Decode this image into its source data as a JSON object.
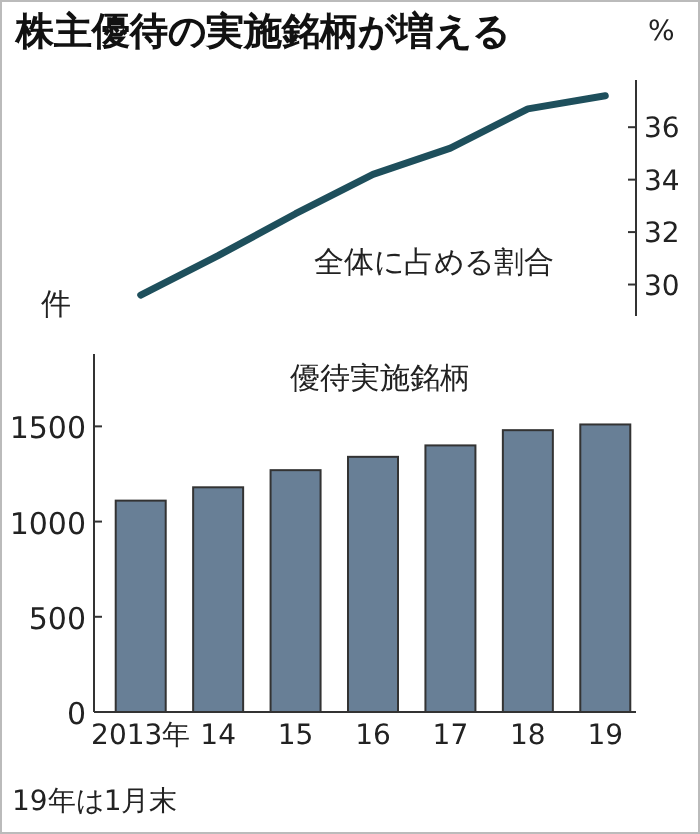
{
  "chart_data": [
    {
      "type": "line",
      "title": "株主優待の実施銘柄が増える",
      "ylabel": "%",
      "categories": [
        null,
        null,
        null,
        null,
        null,
        null,
        null
      ],
      "series": [
        {
          "name": "全体に占める割合",
          "color": "#1e4f5c",
          "values": [
            29.6,
            31.1,
            32.7,
            34.2,
            35.2,
            36.7,
            37.2
          ]
        }
      ],
      "ylim": [
        28.8,
        37.8
      ],
      "yticks": [
        30,
        32,
        34,
        36
      ]
    },
    {
      "type": "bar",
      "ylabel": "件",
      "categories": [
        "2013年",
        "14",
        "15",
        "16",
        "17",
        "18",
        "19"
      ],
      "series": [
        {
          "name": "優待実施銘柄",
          "color": "#687f96",
          "values": [
            1110,
            1180,
            1270,
            1340,
            1400,
            1480,
            1510
          ]
        }
      ],
      "ylim": [
        0,
        1880
      ],
      "yticks": [
        0,
        500,
        1000,
        1500
      ],
      "annotations": [
        "19年は1月末"
      ]
    }
  ]
}
